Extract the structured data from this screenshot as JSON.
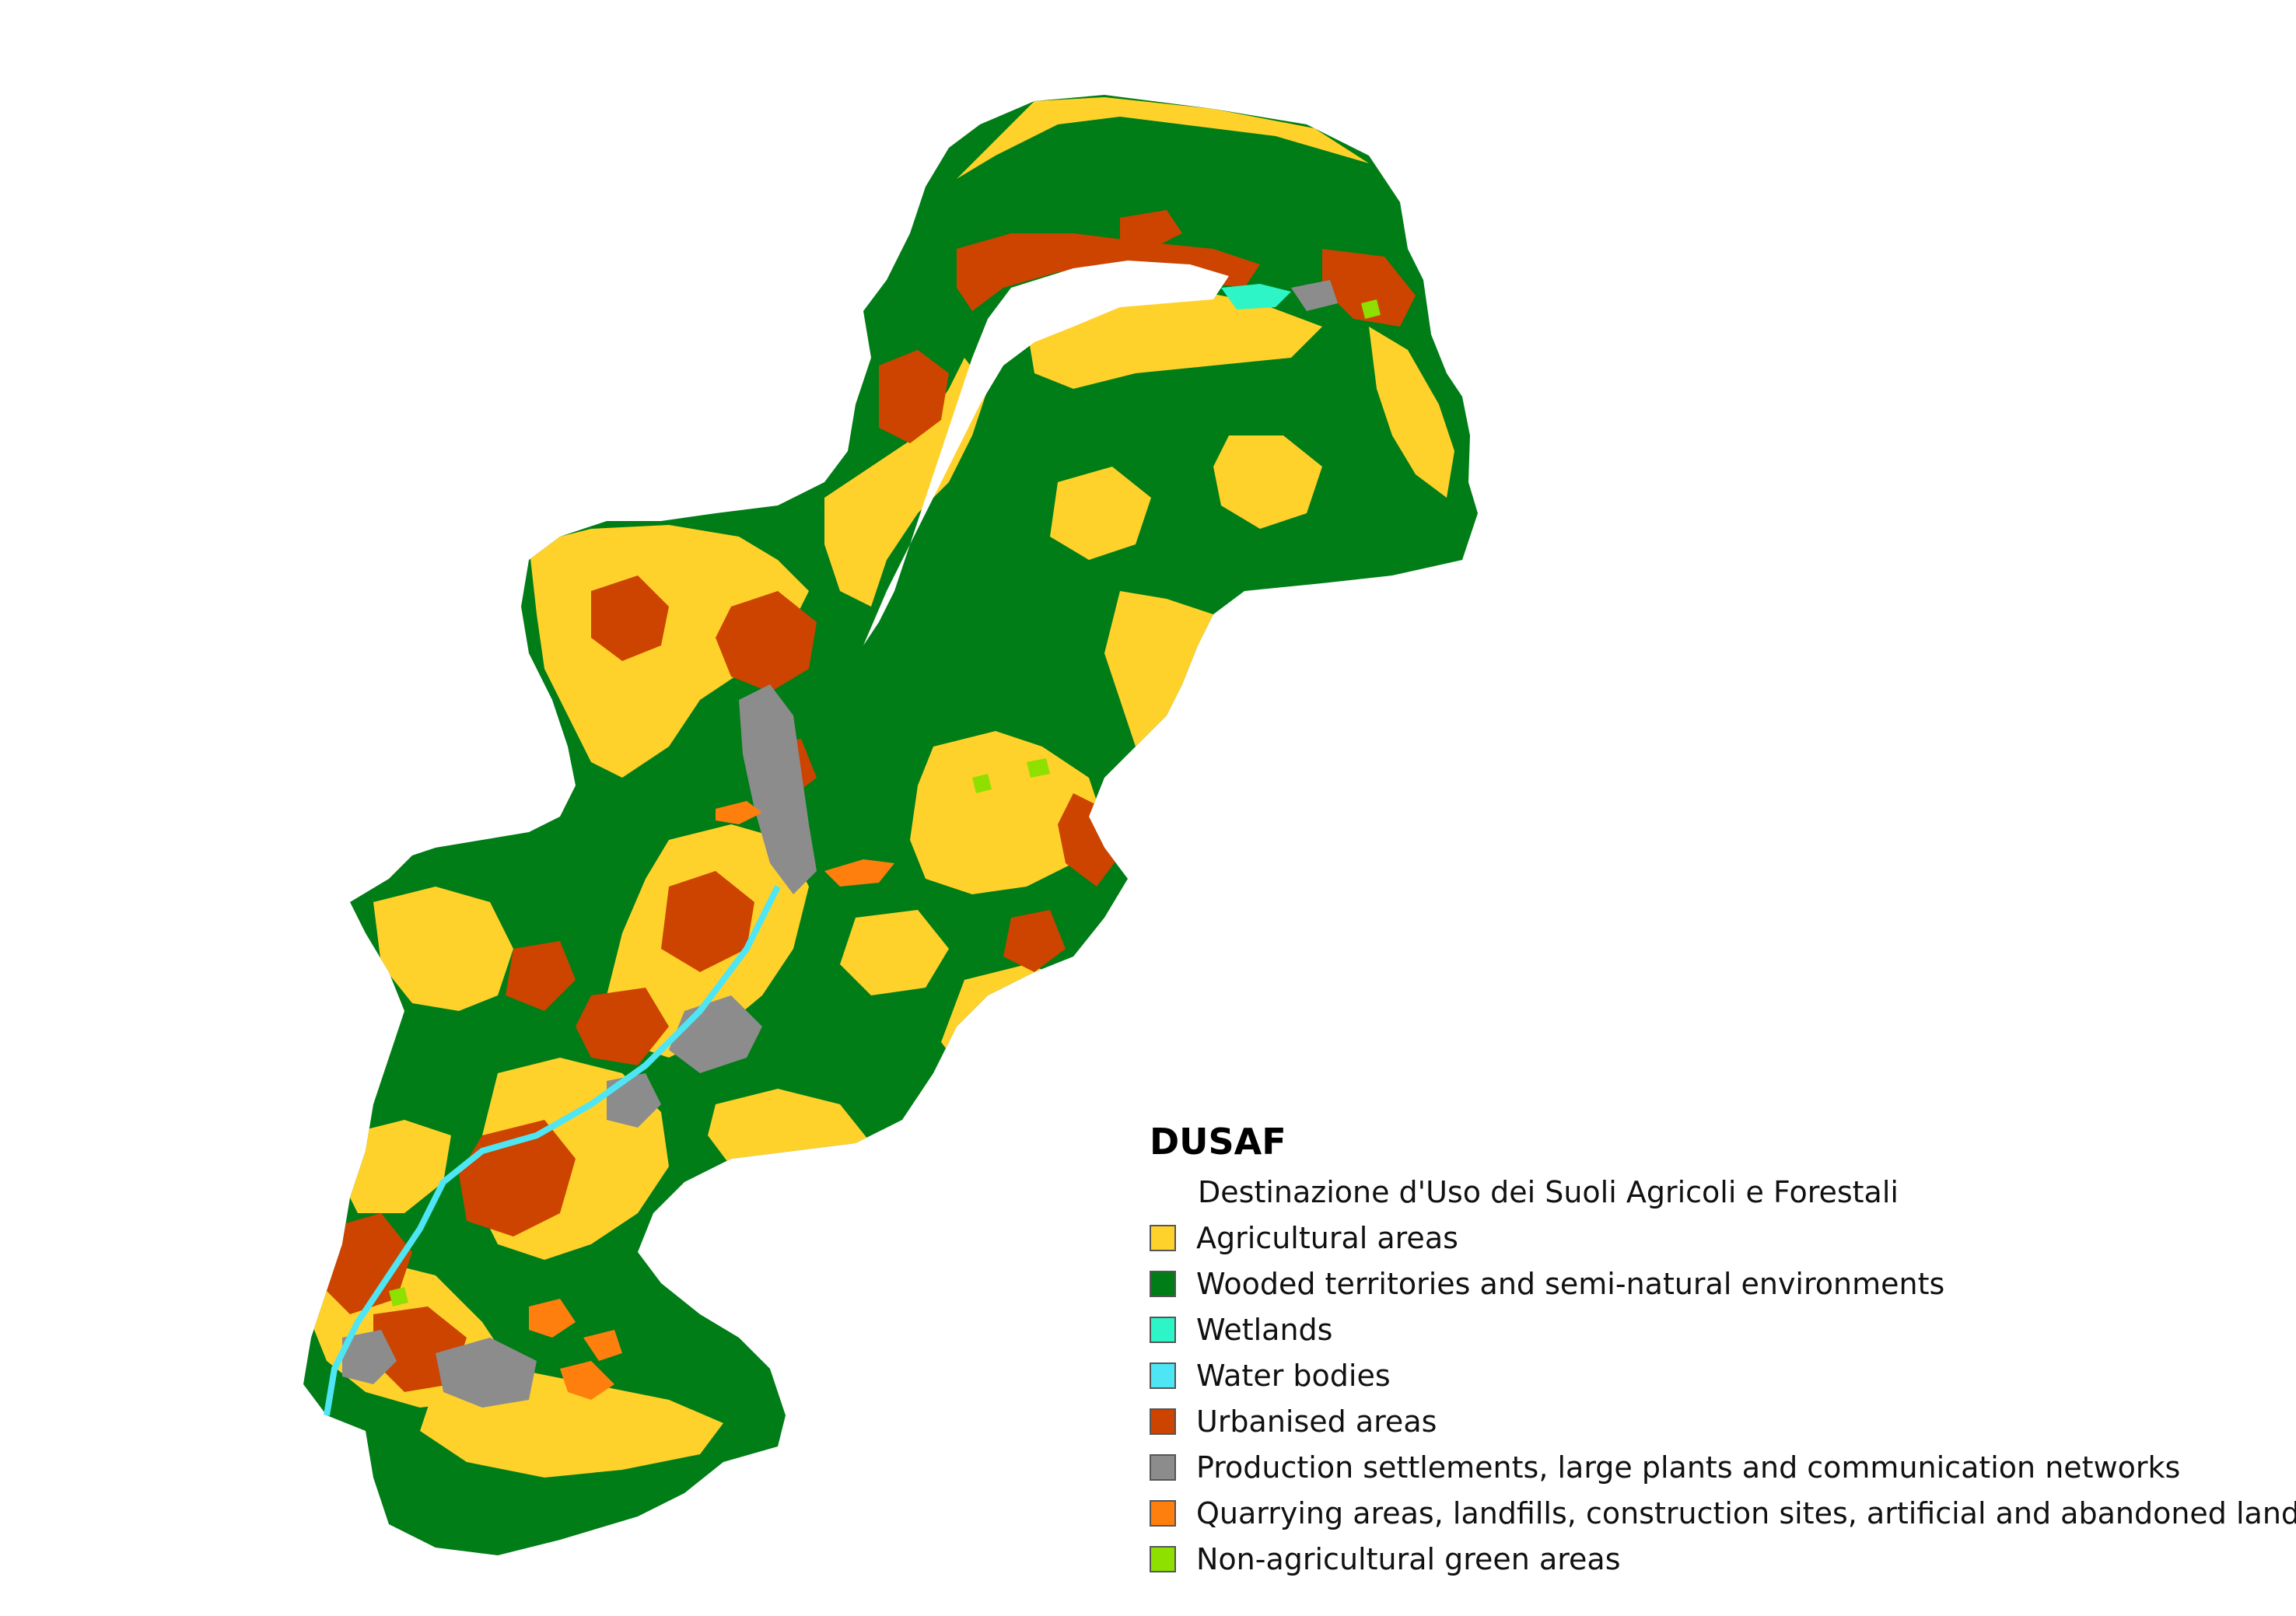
{
  "legend": {
    "title": "DUSAF",
    "subtitle": "Destinazione d'Uso dei Suoli Agricoli e Forestali",
    "items": [
      {
        "label": "Agricultural areas",
        "color": "#ffd12b"
      },
      {
        "label": "Wooded territories and semi-natural environments",
        "color": "#007d16"
      },
      {
        "label": "Wetlands",
        "color": "#2ef5c8"
      },
      {
        "label": "Water bodies",
        "color": "#4ee6f5"
      },
      {
        "label": "Urbanised areas",
        "color": "#cc4400"
      },
      {
        "label": "Production settlements, large plants and communication networks",
        "color": "#8c8c8c"
      },
      {
        "label": "Quarrying areas, landfills, construction sites, artificial and abandoned land",
        "color": "#ff7f0e"
      },
      {
        "label": "Non-agricultural green areas",
        "color": "#8ee000"
      }
    ]
  },
  "colors": {
    "background": "#ffffff",
    "lake": "#ffffff"
  }
}
